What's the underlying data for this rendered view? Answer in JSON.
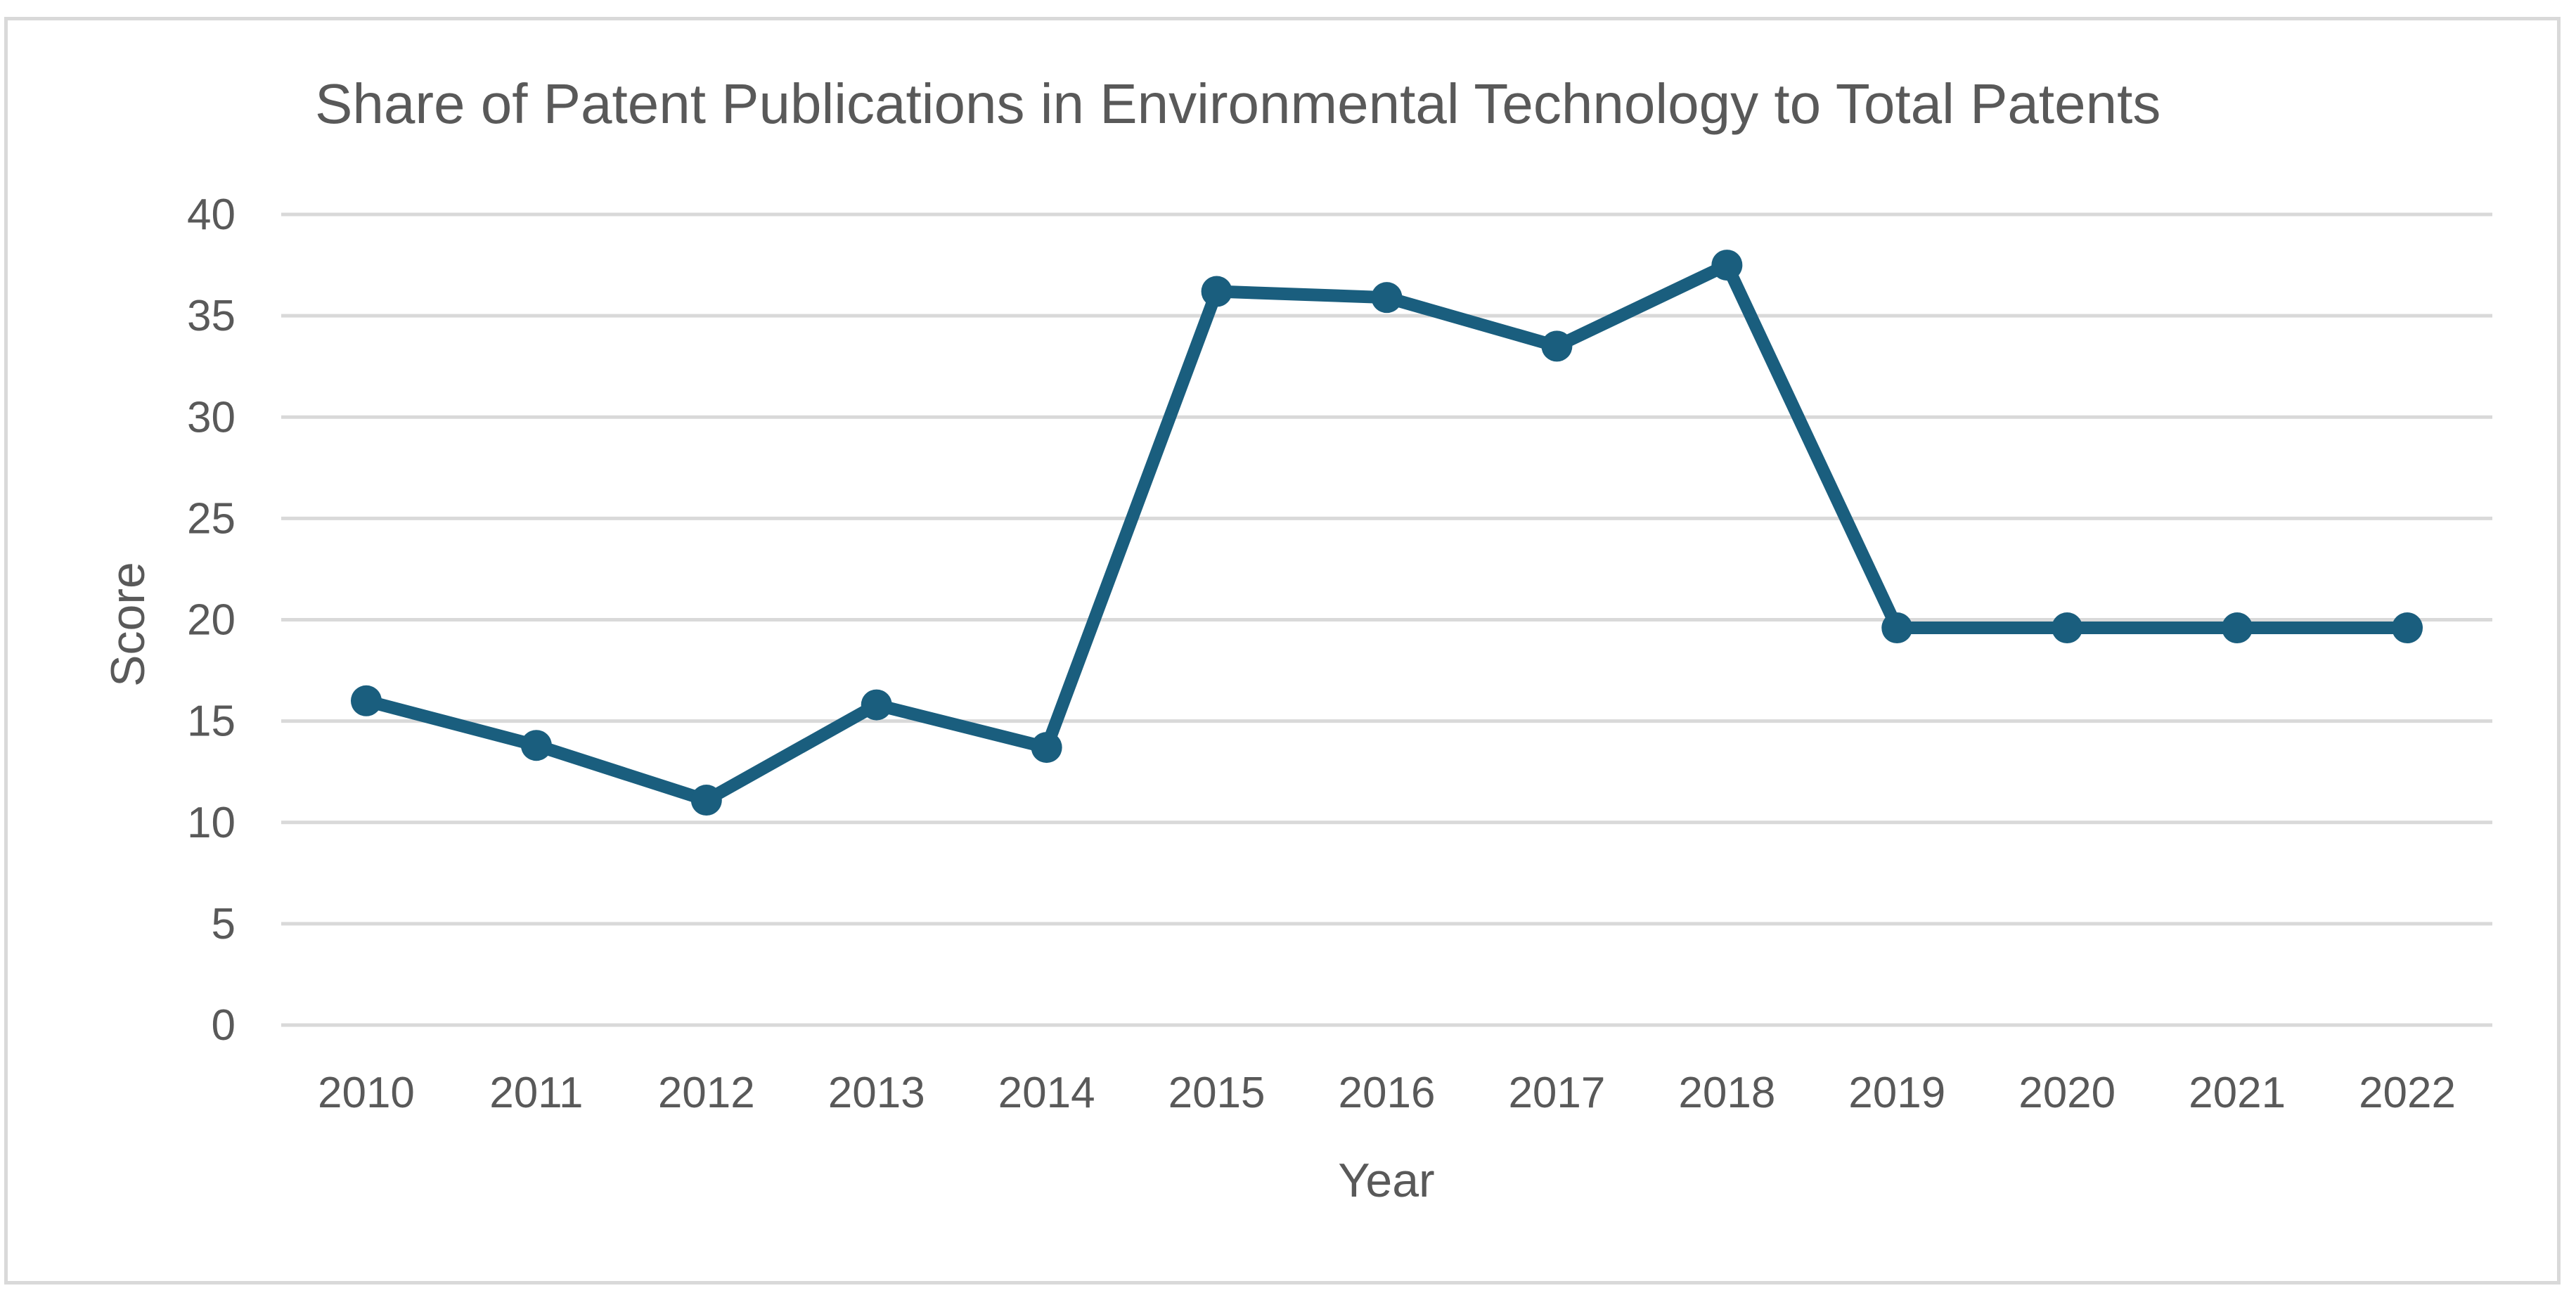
{
  "chart_data": {
    "type": "line",
    "title": "Share of Patent Publications in Environmental Technology to Total Patents",
    "xlabel": "Year",
    "ylabel": "Score",
    "categories": [
      "2010",
      "2011",
      "2012",
      "2013",
      "2014",
      "2015",
      "2016",
      "2017",
      "2018",
      "2019",
      "2020",
      "2021",
      "2022"
    ],
    "series": [
      {
        "name": "Score",
        "values": [
          16.0,
          13.8,
          11.1,
          15.8,
          13.7,
          36.2,
          35.9,
          33.5,
          37.5,
          19.6,
          19.6,
          19.6,
          19.6
        ]
      }
    ],
    "ylim": [
      0,
      40
    ],
    "yticks": [
      0,
      5,
      10,
      15,
      20,
      25,
      30,
      35,
      40
    ],
    "grid": true,
    "legend": "none",
    "colors": {
      "series": "#1a5e7e",
      "grid": "#d9d9d9",
      "text": "#595959"
    }
  }
}
